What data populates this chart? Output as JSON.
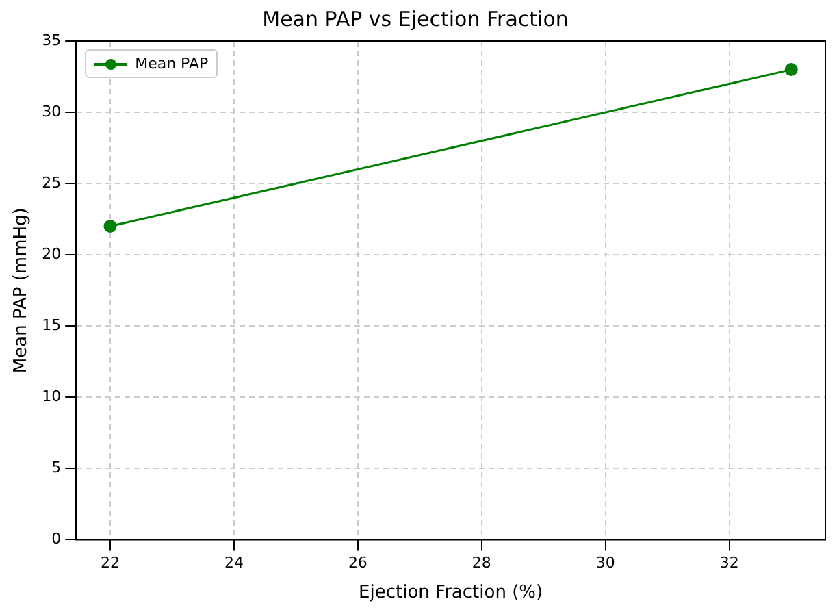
{
  "chart_data": {
    "type": "line",
    "title": "Mean PAP vs Ejection Fraction",
    "xlabel": "Ejection Fraction (%)",
    "ylabel": "Mean PAP (mmHg)",
    "x": [
      22,
      33
    ],
    "series": [
      {
        "name": "Mean PAP",
        "color": "#008000",
        "values": [
          22,
          33
        ]
      }
    ],
    "xlim": [
      21.45,
      33.55
    ],
    "xticks": [
      22,
      24,
      26,
      28,
      30,
      32
    ],
    "ylim": [
      0,
      35
    ],
    "yticks": [
      0,
      5,
      10,
      15,
      20,
      25,
      30,
      35
    ],
    "grid": true,
    "legend": "top left",
    "marker": "circle",
    "line_style": "solid"
  }
}
